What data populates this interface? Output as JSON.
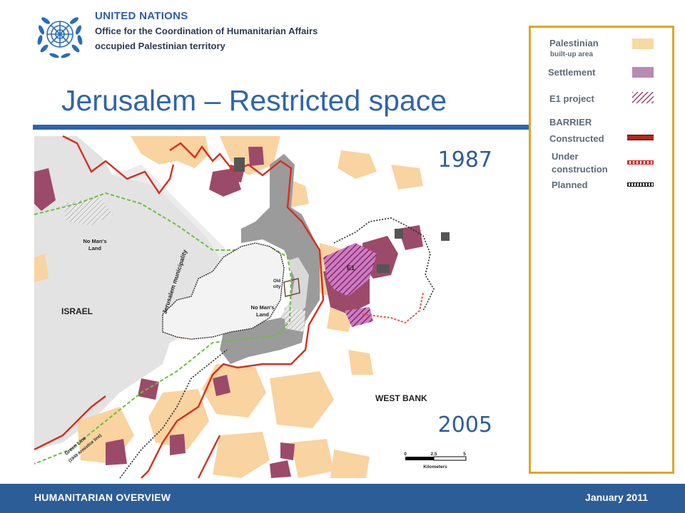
{
  "header": {
    "org_name": "UNITED NATIONS",
    "office": "Office for the Coordination of Humanitarian Affairs",
    "territory": "occupied Palestinian territory",
    "title": "Jerusalem – Restricted space"
  },
  "map": {
    "year_top": "1987",
    "year_bottom": "2005",
    "labels": {
      "no_mans_land_1": [
        "No Man's",
        "Land"
      ],
      "no_mans_land_2": [
        "No Man's",
        "Land"
      ],
      "israel": "ISRAEL",
      "municipality": "Jerusalem municipality",
      "old_city": [
        "Old",
        "city"
      ],
      "e1": "E1",
      "west_bank": "WEST BANK",
      "green_line": "Green Line",
      "armistice": "(1949 Armistice line)"
    },
    "scale": {
      "ticks": [
        "0",
        "2.5",
        "5"
      ],
      "unit": "Kilometers"
    },
    "colors": {
      "palestinian": "#f9d3a0",
      "settlement": "#9c4a6a",
      "municipality_gray": "#9b9b9b",
      "barrier_constructed": "#d42f1f",
      "green_line": "#6bbf3b"
    }
  },
  "legend": {
    "palestinian_label": "Palestinian",
    "palestinian_sub": "built-up area",
    "settlement_label": "Settlement",
    "e1_label": "E1 project",
    "barrier_heading": "BARRIER",
    "constructed_label": "Constructed",
    "under_label_1": "Under",
    "under_label_2": "construction",
    "planned_label": "Planned",
    "colors": {
      "palestinian": "#f7d9a3",
      "settlement": "#b98ab4",
      "e1": "#8e2f65",
      "constructed": "#b8241b",
      "under_construction": "#d6312b",
      "planned": "#222222",
      "border": "#e0a528"
    }
  },
  "footer": {
    "left": "HUMANITARIAN OVERVIEW",
    "right": "January 2011"
  }
}
